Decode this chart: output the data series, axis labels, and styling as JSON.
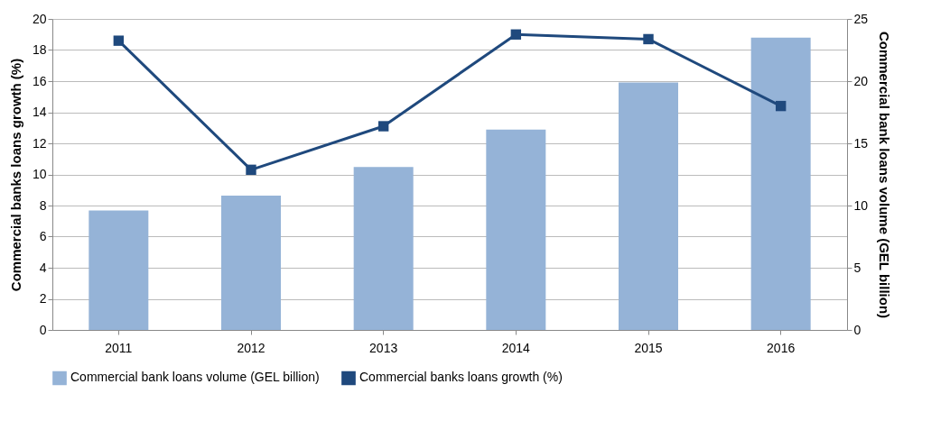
{
  "chart_data": {
    "type": "bar",
    "ylabel": "Commercial banks loans growth (%)",
    "y2label": "Commercial bank loans volume (GEL billion)",
    "categories": [
      "2011",
      "2012",
      "2013",
      "2014",
      "2015",
      "2016"
    ],
    "series": [
      {
        "name": "Commercial bank loans volume (GEL billion)",
        "axis": "y2",
        "color": "#95b3d7",
        "values": [
          9.6,
          10.8,
          13.1,
          16.1,
          19.9,
          23.5
        ]
      },
      {
        "name": "Commercial banks loans growth (%)",
        "type": "line",
        "color": "#1f497d",
        "marker": "square",
        "values": [
          18.6,
          10.3,
          13.1,
          19.0,
          18.7,
          14.4
        ]
      }
    ],
    "ylim": [
      0,
      20
    ],
    "yticks": [
      0,
      2,
      4,
      6,
      8,
      10,
      12,
      14,
      16,
      18,
      20
    ],
    "y2lim": [
      0,
      25
    ],
    "y2ticks": [
      0,
      5,
      10,
      15,
      20,
      25
    ],
    "grid": "y",
    "legend": "bottom"
  }
}
